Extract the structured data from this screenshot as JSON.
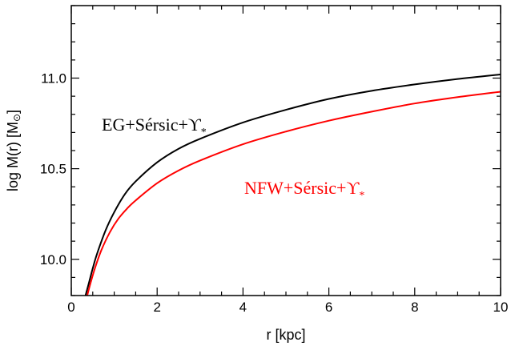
{
  "chart_data": {
    "type": "line",
    "xlabel": "r [kpc]",
    "ylabel_main": "log M(r) [M",
    "ylabel_symbol": "⊙",
    "ylabel_close": "]",
    "xlim": [
      0,
      10
    ],
    "ylim": [
      9.8,
      11.4
    ],
    "xticks": [
      0,
      2,
      4,
      6,
      8,
      10
    ],
    "xtick_labels": [
      "0",
      "2",
      "4",
      "6",
      "8",
      "10"
    ],
    "yticks": [
      10.0,
      10.5,
      11.0
    ],
    "ytick_labels": [
      "10.0",
      "10.5",
      "11.0"
    ],
    "grid": false,
    "series": [
      {
        "name": "EG+Sérsic+ϒ*",
        "label_main": "EG+Sérsic+ϒ",
        "label_sub": "*",
        "color": "#000000",
        "x": [
          0.32,
          0.4,
          0.5,
          0.6,
          0.8,
          1.0,
          1.25,
          1.5,
          2.0,
          2.5,
          3.0,
          4.0,
          5.0,
          6.0,
          7.0,
          8.0,
          9.0,
          10.0
        ],
        "y": [
          9.79,
          9.86,
          9.95,
          10.03,
          10.16,
          10.26,
          10.36,
          10.43,
          10.535,
          10.61,
          10.665,
          10.755,
          10.825,
          10.885,
          10.93,
          10.965,
          10.995,
          11.02
        ]
      },
      {
        "name": "NFW+Sérsic+ϒ*",
        "label_main": "NFW+Sérsic+ϒ",
        "label_sub": "*",
        "color": "#ff0000",
        "x": [
          0.36,
          0.45,
          0.55,
          0.7,
          0.9,
          1.1,
          1.3,
          1.5,
          2.0,
          2.5,
          3.0,
          4.0,
          5.0,
          6.0,
          7.0,
          8.0,
          9.0,
          10.0
        ],
        "y": [
          9.79,
          9.87,
          9.95,
          10.05,
          10.15,
          10.225,
          10.28,
          10.325,
          10.42,
          10.49,
          10.545,
          10.635,
          10.705,
          10.765,
          10.815,
          10.86,
          10.895,
          10.925
        ]
      }
    ]
  }
}
